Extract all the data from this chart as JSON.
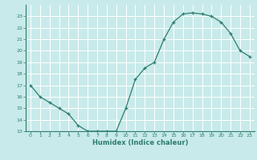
{
  "x": [
    0,
    1,
    2,
    3,
    4,
    5,
    6,
    7,
    8,
    9,
    10,
    11,
    12,
    13,
    14,
    15,
    16,
    17,
    18,
    19,
    20,
    21,
    22,
    23
  ],
  "y": [
    17.0,
    16.0,
    15.5,
    15.0,
    14.5,
    13.5,
    13.0,
    13.0,
    13.0,
    13.0,
    15.0,
    17.5,
    18.5,
    19.0,
    21.0,
    22.5,
    23.2,
    23.3,
    23.2,
    23.0,
    22.5,
    21.5,
    20.0,
    19.5
  ],
  "xlabel": "Humidex (Indice chaleur)",
  "bg_color": "#c8eaea",
  "line_color": "#2e7d6e",
  "grid_color": "#ffffff",
  "tick_color": "#2e7d6e",
  "spine_color": "#2e7d6e",
  "ylim": [
    13,
    24
  ],
  "xlim": [
    -0.5,
    23.5
  ],
  "yticks": [
    13,
    14,
    15,
    16,
    17,
    18,
    19,
    20,
    21,
    22,
    23
  ],
  "xticks": [
    0,
    1,
    2,
    3,
    4,
    5,
    6,
    7,
    8,
    9,
    10,
    11,
    12,
    13,
    14,
    15,
    16,
    17,
    18,
    19,
    20,
    21,
    22,
    23
  ]
}
